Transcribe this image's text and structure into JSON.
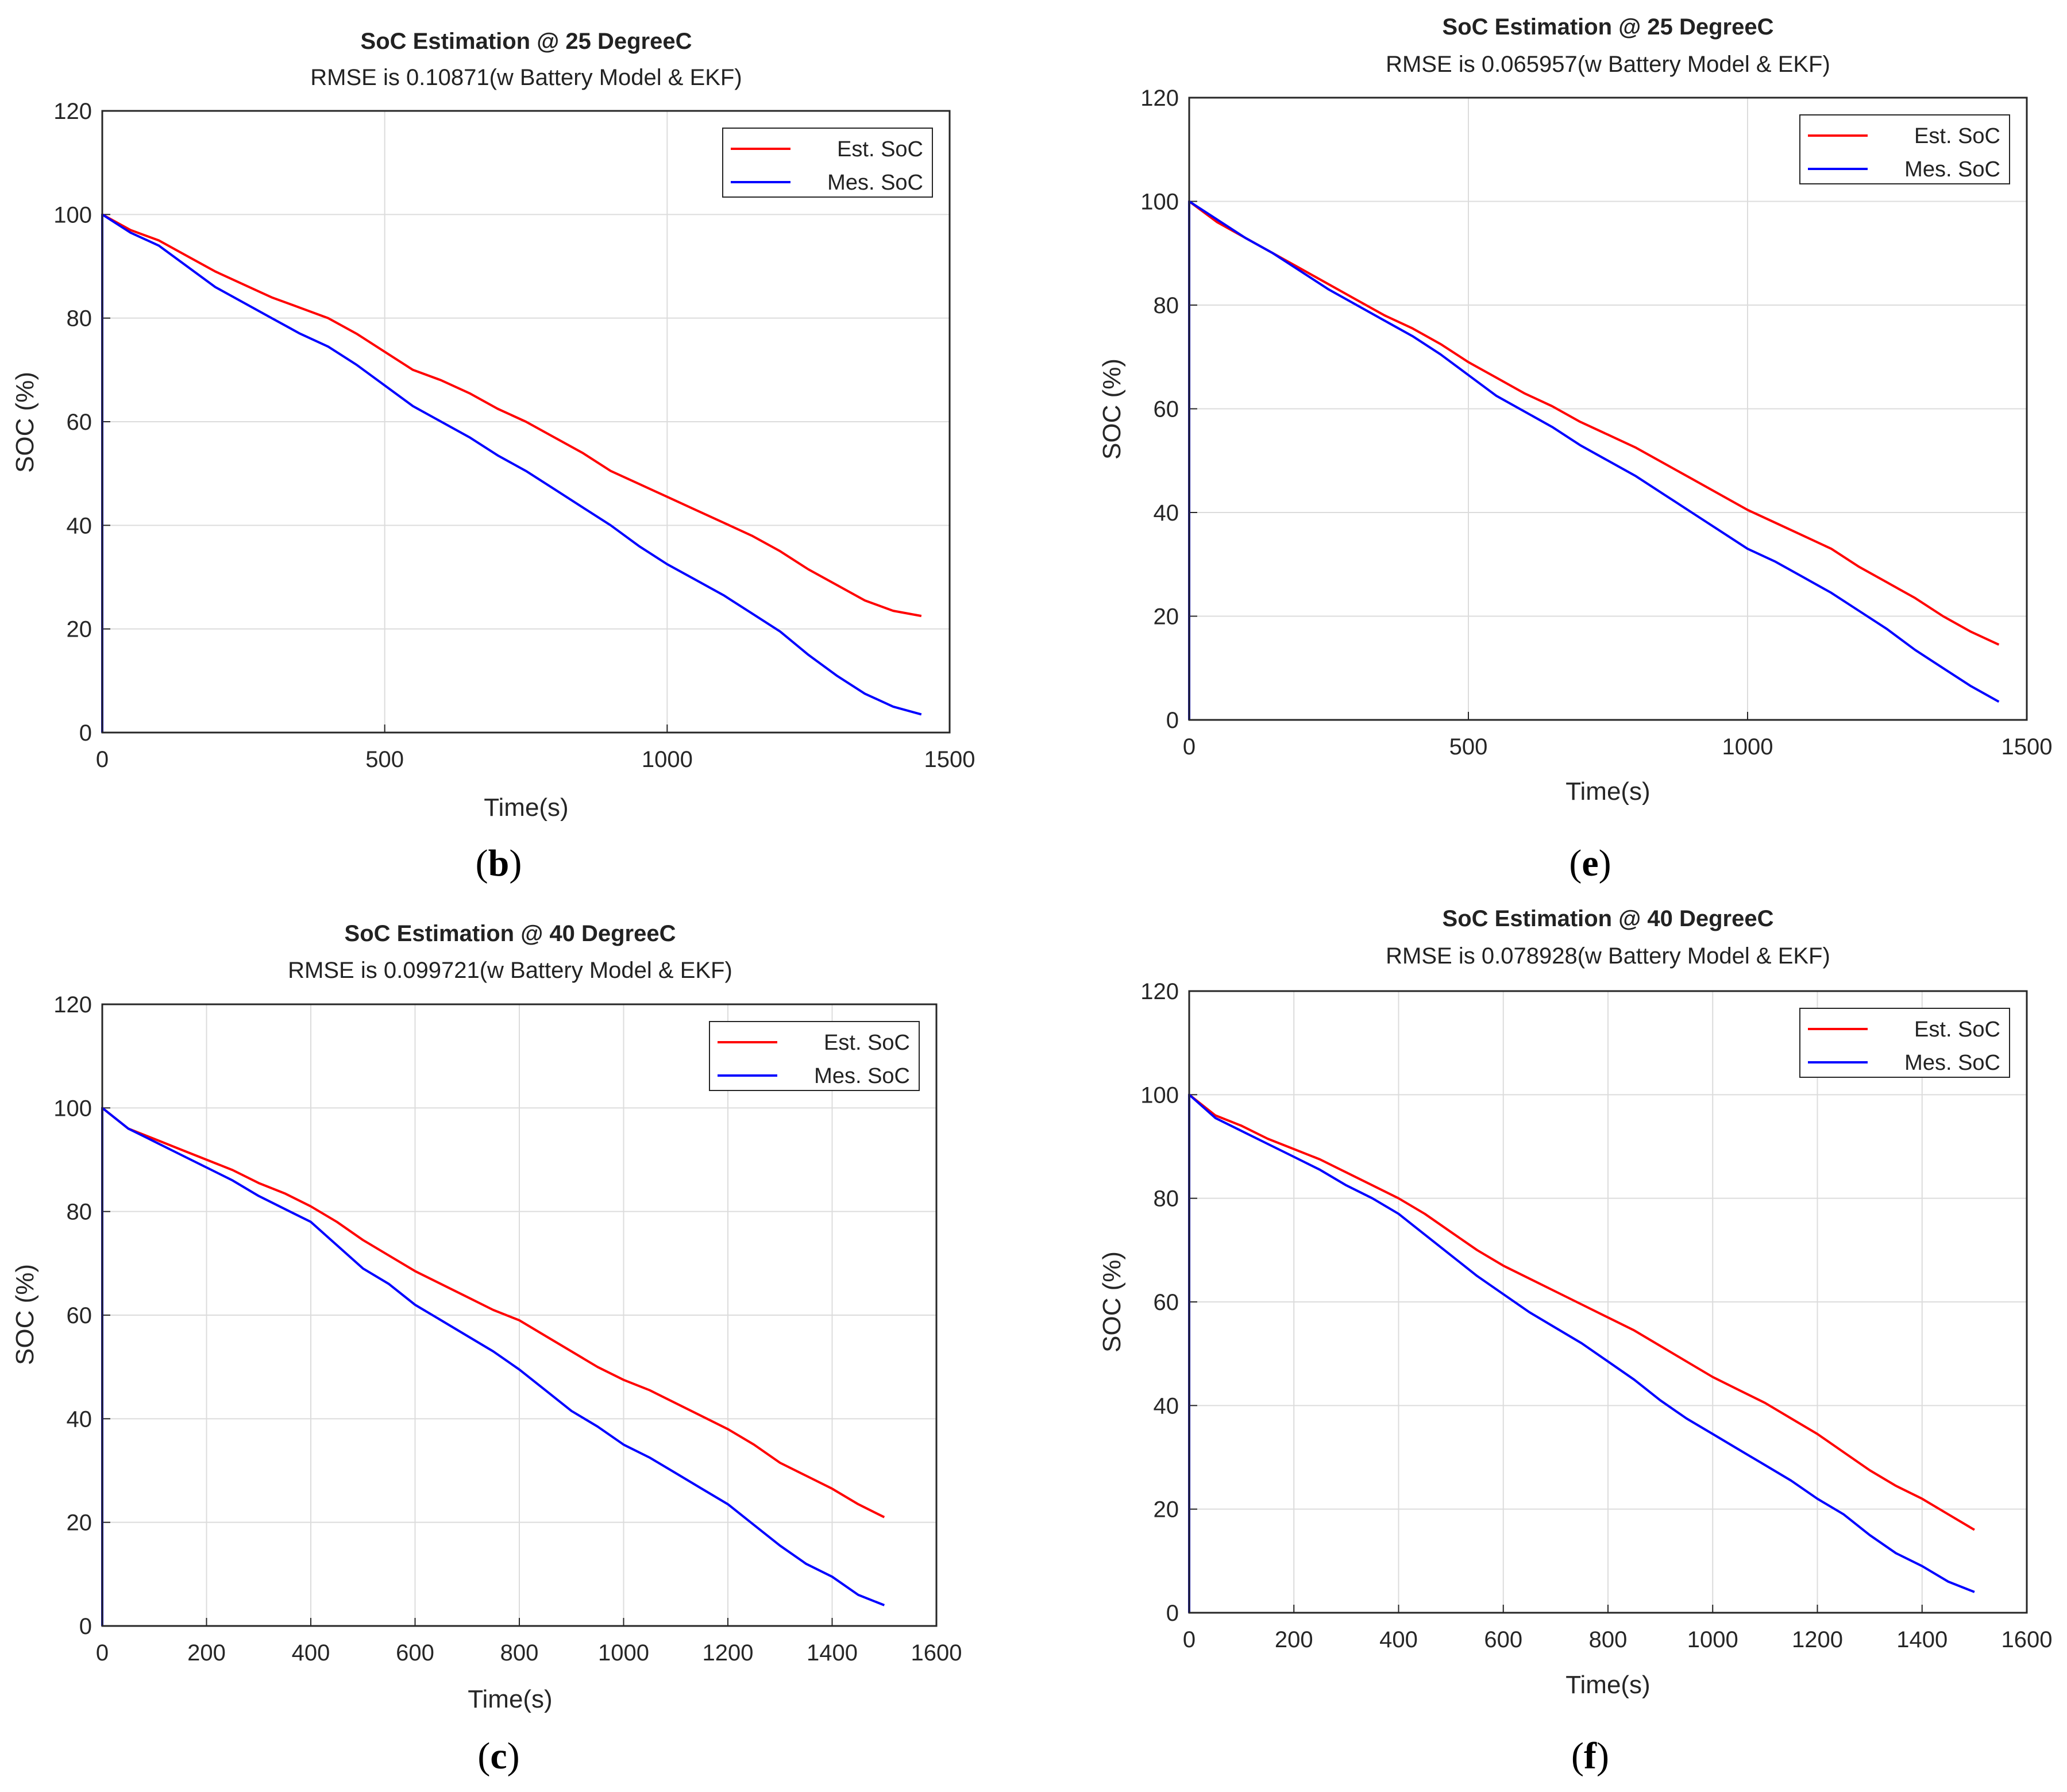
{
  "chart_data": [
    {
      "type": "line",
      "panel": "b",
      "caption": "b",
      "title": "SoC Estimation @ 25 DegreeC",
      "subtitle": "RMSE is 0.10871(w Battery Model & EKF)",
      "xlabel": "Time(s)",
      "ylabel": "SOC (%)",
      "xlim": [
        0,
        1500
      ],
      "ylim": [
        0,
        120
      ],
      "xticks": [
        0,
        500,
        1000,
        1500
      ],
      "yticks": [
        0,
        20,
        40,
        60,
        80,
        100,
        120
      ],
      "grid": true,
      "legend_position": "top-right",
      "x": [
        0,
        50,
        100,
        150,
        200,
        250,
        300,
        350,
        400,
        450,
        500,
        550,
        600,
        650,
        700,
        750,
        800,
        850,
        900,
        950,
        1000,
        1050,
        1100,
        1150,
        1200,
        1250,
        1300,
        1350,
        1400,
        1450
      ],
      "series": [
        {
          "name": "Est. SoC",
          "color": "#ff0000",
          "values": [
            100,
            97,
            95,
            92,
            89,
            86.5,
            84,
            82,
            80,
            77,
            73.5,
            70,
            68,
            65.5,
            62.5,
            60,
            57,
            54,
            50.5,
            48,
            45.5,
            43,
            40.5,
            38,
            35,
            31.5,
            28.5,
            25.5,
            23.5,
            22.5
          ]
        },
        {
          "name": "Mes. SoC",
          "color": "#0000ff",
          "values": [
            100,
            96.5,
            94,
            90,
            86,
            83,
            80,
            77,
            74.5,
            71,
            67,
            63,
            60,
            57,
            53.5,
            50.5,
            47,
            43.5,
            40,
            36,
            32.5,
            29.5,
            26.5,
            23,
            19.5,
            15,
            11,
            7.5,
            5,
            3.5
          ]
        }
      ]
    },
    {
      "type": "line",
      "panel": "e",
      "caption": "e",
      "title": "SoC Estimation @ 25 DegreeC",
      "subtitle": "RMSE is 0.065957(w Battery Model & EKF)",
      "xlabel": "Time(s)",
      "ylabel": "SOC (%)",
      "xlim": [
        0,
        1500
      ],
      "ylim": [
        0,
        120
      ],
      "xticks": [
        0,
        500,
        1000,
        1500
      ],
      "yticks": [
        0,
        20,
        40,
        60,
        80,
        100,
        120
      ],
      "grid": true,
      "legend_position": "top-right",
      "x": [
        0,
        50,
        100,
        150,
        200,
        250,
        300,
        350,
        400,
        450,
        500,
        550,
        600,
        650,
        700,
        750,
        800,
        850,
        900,
        950,
        1000,
        1050,
        1100,
        1150,
        1200,
        1250,
        1300,
        1350,
        1400,
        1450
      ],
      "series": [
        {
          "name": "Est. SoC",
          "color": "#ff0000",
          "values": [
            100,
            96,
            93,
            90,
            87,
            84,
            81,
            78,
            75.5,
            72.5,
            69,
            66,
            63,
            60.5,
            57.5,
            55,
            52.5,
            49.5,
            46.5,
            43.5,
            40.5,
            38,
            35.5,
            33,
            29.5,
            26.5,
            23.5,
            20,
            17,
            14.5
          ]
        },
        {
          "name": "Mes. SoC",
          "color": "#0000ff",
          "values": [
            100,
            96.5,
            93,
            90,
            86.5,
            83,
            80,
            77,
            74,
            70.5,
            66.5,
            62.5,
            59.5,
            56.5,
            53,
            50,
            47,
            43.5,
            40,
            36.5,
            33,
            30.5,
            27.5,
            24.5,
            21,
            17.5,
            13.5,
            10,
            6.5,
            3.5
          ]
        }
      ]
    },
    {
      "type": "line",
      "panel": "c",
      "caption": "c",
      "title": "SoC Estimation @ 40 DegreeC",
      "subtitle": "RMSE is 0.099721(w Battery Model & EKF)",
      "xlabel": "Time(s)",
      "ylabel": "SOC (%)",
      "xlim": [
        0,
        1600
      ],
      "ylim": [
        0,
        120
      ],
      "xticks": [
        0,
        200,
        400,
        600,
        800,
        1000,
        1200,
        1400,
        1600
      ],
      "yticks": [
        0,
        20,
        40,
        60,
        80,
        100,
        120
      ],
      "grid": true,
      "legend_position": "top-right",
      "x": [
        0,
        50,
        100,
        150,
        200,
        250,
        300,
        350,
        400,
        450,
        500,
        550,
        600,
        650,
        700,
        750,
        800,
        850,
        900,
        950,
        1000,
        1050,
        1100,
        1150,
        1200,
        1250,
        1300,
        1350,
        1400,
        1450,
        1500
      ],
      "series": [
        {
          "name": "Est. SoC",
          "color": "#ff0000",
          "values": [
            100,
            96,
            94,
            92,
            90,
            88,
            85.5,
            83.5,
            81,
            78,
            74.5,
            71.5,
            68.5,
            66,
            63.5,
            61,
            59,
            56,
            53,
            50,
            47.5,
            45.5,
            43,
            40.5,
            38,
            35,
            31.5,
            29,
            26.5,
            23.5,
            21
          ]
        },
        {
          "name": "Mes. SoC",
          "color": "#0000ff",
          "values": [
            100,
            96,
            93.5,
            91,
            88.5,
            86,
            83,
            80.5,
            78,
            73.5,
            69,
            66,
            62,
            59,
            56,
            53,
            49.5,
            45.5,
            41.5,
            38.5,
            35,
            32.5,
            29.5,
            26.5,
            23.5,
            19.5,
            15.5,
            12,
            9.5,
            6,
            4
          ]
        }
      ]
    },
    {
      "type": "line",
      "panel": "f",
      "caption": "f",
      "title": "SoC Estimation @ 40 DegreeC",
      "subtitle": "RMSE is 0.078928(w Battery Model & EKF)",
      "xlabel": "Time(s)",
      "ylabel": "SOC (%)",
      "xlim": [
        0,
        1600
      ],
      "ylim": [
        0,
        120
      ],
      "xticks": [
        0,
        200,
        400,
        600,
        800,
        1000,
        1200,
        1400,
        1600
      ],
      "yticks": [
        0,
        20,
        40,
        60,
        80,
        100,
        120
      ],
      "grid": true,
      "legend_position": "top-right",
      "x": [
        0,
        50,
        100,
        150,
        200,
        250,
        300,
        350,
        400,
        450,
        500,
        550,
        600,
        650,
        700,
        750,
        800,
        850,
        900,
        950,
        1000,
        1050,
        1100,
        1150,
        1200,
        1250,
        1300,
        1350,
        1400,
        1450,
        1500
      ],
      "series": [
        {
          "name": "Est. SoC",
          "color": "#ff0000",
          "values": [
            100,
            96,
            94,
            91.5,
            89.5,
            87.5,
            85,
            82.5,
            80,
            77,
            73.5,
            70,
            67,
            64.5,
            62,
            59.5,
            57,
            54.5,
            51.5,
            48.5,
            45.5,
            43,
            40.5,
            37.5,
            34.5,
            31,
            27.5,
            24.5,
            22,
            19,
            16
          ]
        },
        {
          "name": "Mes. SoC",
          "color": "#0000ff",
          "values": [
            100,
            95.5,
            93,
            90.5,
            88,
            85.5,
            82.5,
            80,
            77,
            73,
            69,
            65,
            61.5,
            58,
            55,
            52,
            48.5,
            45,
            41,
            37.5,
            34.5,
            31.5,
            28.5,
            25.5,
            22,
            19,
            15,
            11.5,
            9,
            6,
            4
          ]
        }
      ]
    }
  ]
}
